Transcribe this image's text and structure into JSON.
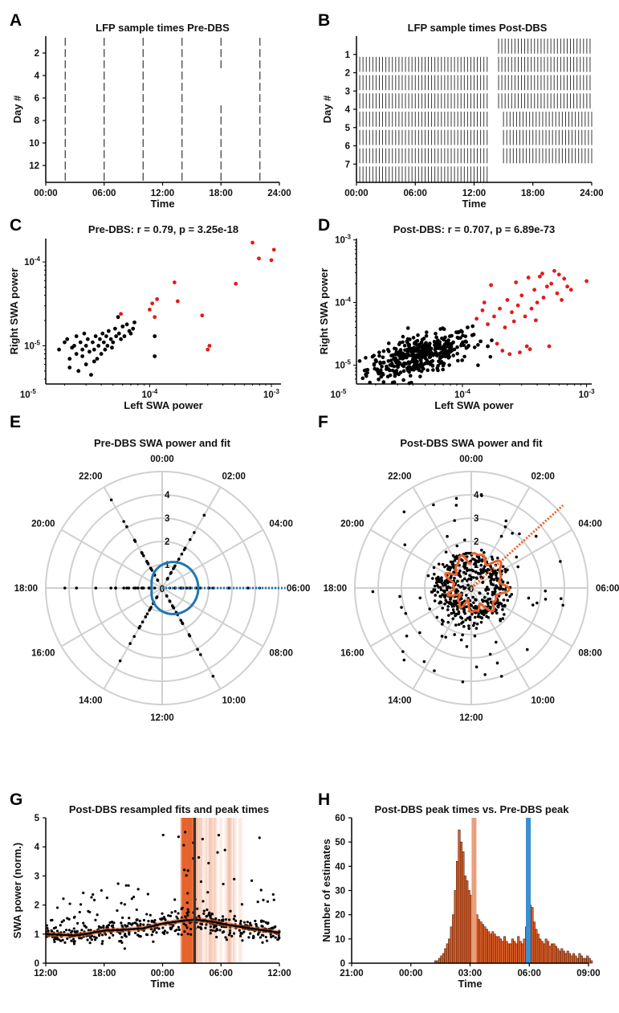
{
  "panel_letters": [
    "A",
    "B",
    "C",
    "D",
    "E",
    "F",
    "G",
    "H"
  ],
  "chart_data": [
    {
      "panel": "A",
      "type": "raster",
      "title": "LFP sample times Pre-DBS",
      "xlabel": "Time",
      "ylabel": "Day #",
      "xticks": [
        "00:00",
        "06:00",
        "12:00",
        "18:00",
        "24:00"
      ],
      "yticks": [
        "2",
        "4",
        "6",
        "8",
        "10",
        "12"
      ],
      "xlim": [
        0,
        24
      ],
      "ylim": [
        0,
        13
      ],
      "sample_hours": [
        2,
        6,
        10,
        14,
        18,
        22
      ],
      "days": 13,
      "gaps": [
        {
          "hour": 18,
          "from_day": 3,
          "to_day": 6
        }
      ]
    },
    {
      "panel": "B",
      "type": "raster",
      "title": "LFP sample times Post-DBS",
      "xlabel": "Time",
      "ylabel": "Day #",
      "xticks": [
        "00:00",
        "06:00",
        "12:00",
        "18:00",
        "24:00"
      ],
      "yticks": [
        "1",
        "2",
        "3",
        "4",
        "5",
        "6",
        "7"
      ],
      "xlim": [
        0,
        24
      ],
      "ylim": [
        0,
        7.6
      ],
      "interval_minutes": 20,
      "day_rows": [
        {
          "day": 0,
          "segments": [
            [
              0,
              0.2
            ],
            [
              14.5,
              24
            ]
          ]
        },
        {
          "day": 1,
          "segments": [
            [
              0,
              13.5
            ],
            [
              14.5,
              24
            ]
          ]
        },
        {
          "day": 2,
          "segments": [
            [
              0,
              13.5
            ],
            [
              14.5,
              24
            ]
          ]
        },
        {
          "day": 3,
          "segments": [
            [
              0,
              13.5
            ],
            [
              14.5,
              24
            ]
          ]
        },
        {
          "day": 4,
          "segments": [
            [
              0,
              13.5
            ],
            [
              15,
              24
            ]
          ]
        },
        {
          "day": 5,
          "segments": [
            [
              0,
              13.5
            ],
            [
              15,
              24
            ]
          ]
        },
        {
          "day": 6,
          "segments": [
            [
              0,
              13.5
            ],
            [
              15,
              24
            ]
          ]
        },
        {
          "day": 7,
          "segments": [
            [
              0,
              13.5
            ]
          ]
        }
      ]
    },
    {
      "panel": "C",
      "type": "scatter",
      "title": "Pre-DBS: r = 0.79, p = 3.25e-18",
      "xlabel": "Left SWA power",
      "ylabel": "Right SWA power",
      "xscale": "log",
      "yscale": "log",
      "xlim": [
        1.4e-05,
        0.0012
      ],
      "ylim": [
        3.5e-06,
        0.00019
      ],
      "xticks": [
        1e-05,
        0.0001,
        0.001
      ],
      "xtick_labels": [
        "10^-5",
        "10^-4",
        "10^-3"
      ],
      "yticks": [
        1e-05,
        0.0001
      ],
      "ytick_labels": [
        "10^-5",
        "10^-4"
      ],
      "series": [
        {
          "color": "#000000",
          "points": [
            [
              1.8e-05,
              9e-06
            ],
            [
              2e-05,
              1.1e-05
            ],
            [
              2.1e-05,
              1.2e-05
            ],
            [
              2.2e-05,
              7e-06
            ],
            [
              2.3e-05,
              9.5e-06
            ],
            [
              2.4e-05,
              1e-05
            ],
            [
              2.5e-05,
              8e-06
            ],
            [
              2.5e-05,
              1.3e-05
            ],
            [
              2.6e-05,
              5e-06
            ],
            [
              2.7e-05,
              1.1e-05
            ],
            [
              2.8e-05,
              7.5e-06
            ],
            [
              2.8e-05,
              9e-06
            ],
            [
              2.9e-05,
              1.4e-05
            ],
            [
              3e-05,
              6e-06
            ],
            [
              3e-05,
              1e-05
            ],
            [
              3.1e-05,
              1.2e-05
            ],
            [
              3.2e-05,
              8.5e-06
            ],
            [
              3.3e-05,
              4.5e-06
            ],
            [
              3.4e-05,
              1.1e-05
            ],
            [
              3.5e-05,
              9e-06
            ],
            [
              3.6e-05,
              1.3e-05
            ],
            [
              3.7e-05,
              7e-06
            ],
            [
              3.8e-05,
              1e-05
            ],
            [
              3.9e-05,
              1.2e-05
            ],
            [
              4e-05,
              8e-06
            ],
            [
              4.1e-05,
              1.4e-05
            ],
            [
              4.2e-05,
              1.1e-05
            ],
            [
              4.3e-05,
              9e-06
            ],
            [
              4.4e-05,
              1.3e-05
            ],
            [
              4.5e-05,
              1e-05
            ],
            [
              4.6e-05,
              1.5e-05
            ],
            [
              4.8e-05,
              1.2e-05
            ],
            [
              5e-05,
              1.1e-05
            ],
            [
              5.2e-05,
              1.6e-05
            ],
            [
              5.3e-05,
              1.3e-05
            ],
            [
              5.5e-05,
              2.2e-05
            ],
            [
              5.6e-05,
              1.4e-05
            ],
            [
              5.8e-05,
              1.2e-05
            ],
            [
              6e-05,
              1.7e-05
            ],
            [
              6.2e-05,
              1.3e-05
            ],
            [
              6.5e-05,
              1.8e-05
            ],
            [
              6.8e-05,
              1.5e-05
            ],
            [
              7e-05,
              1.4e-05
            ],
            [
              7.3e-05,
              1.6e-05
            ],
            [
              7.5e-05,
              1.9e-05
            ],
            [
              0.00011,
              1.3e-05
            ],
            [
              0.00011,
              7.5e-06
            ],
            [
              2.2e-05,
              5.5e-06
            ],
            [
              3.5e-05,
              6.5e-06
            ],
            [
              4.9e-05,
              9.5e-06
            ]
          ]
        },
        {
          "color": "#e41a1c",
          "points": [
            [
              5.8e-05,
              2.4e-05
            ],
            [
              0.0001,
              2.7e-05
            ],
            [
              0.000105,
              3.2e-05
            ],
            [
              0.00011,
              2.2e-05
            ],
            [
              0.000115,
              3.6e-05
            ],
            [
              0.00016,
              5.7e-05
            ],
            [
              0.00017,
              3.4e-05
            ],
            [
              0.00027,
              2.3e-05
            ],
            [
              0.0003,
              9e-06
            ],
            [
              0.00031,
              1e-05
            ],
            [
              0.00051,
              5.5e-05
            ],
            [
              0.0007,
              0.00017
            ],
            [
              0.00079,
              0.00011
            ],
            [
              0.001,
              0.000105
            ],
            [
              0.00105,
              0.00014
            ]
          ]
        }
      ]
    },
    {
      "panel": "D",
      "type": "scatter",
      "title": "Post-DBS: r = 0.707, p = 6.89e-73",
      "xlabel": "Left SWA power",
      "ylabel": "Right SWA power",
      "xscale": "log",
      "yscale": "log",
      "xlim": [
        1.4e-05,
        0.0011
      ],
      "ylim": [
        5e-06,
        0.00105
      ],
      "xticks": [
        1e-05,
        0.0001,
        0.001
      ],
      "xtick_labels": [
        "10^-5",
        "10^-4",
        "10^-3"
      ],
      "yticks": [
        1e-05,
        0.0001,
        0.001
      ],
      "ytick_labels": [
        "10^-5",
        "10^-4",
        "10^-3"
      ],
      "series": [
        {
          "color": "#000000",
          "cloud": {
            "count": 420,
            "center": [
              4.5e-05,
              1.4e-05
            ],
            "log10_spread": [
              0.21,
              0.15
            ],
            "slope": 0.5
          },
          "points": [
            [
              2e-05,
              1.2e-05
            ],
            [
              0.00012,
              3e-05
            ],
            [
              0.00014,
              2.4e-05
            ],
            [
              0.00016,
              2e-05
            ],
            [
              0.00011,
              4e-05
            ]
          ]
        },
        {
          "color": "#e41a1c",
          "points": [
            [
              0.00013,
              5.5e-05
            ],
            [
              0.00015,
              0.0001
            ],
            [
              0.00016,
              4.5e-05
            ],
            [
              0.00018,
              6e-05
            ],
            [
              0.0002,
              8e-05
            ],
            [
              0.00022,
              4e-05
            ],
            [
              0.00023,
              0.00011
            ],
            [
              0.00025,
              7e-05
            ],
            [
              0.00026,
              5e-05
            ],
            [
              0.00028,
              9e-05
            ],
            [
              0.0003,
              0.00013
            ],
            [
              0.00032,
              6e-05
            ],
            [
              0.00034,
              0.00025
            ],
            [
              0.00035,
              1.8e-05
            ],
            [
              0.00036,
              8e-05
            ],
            [
              0.00038,
              0.00016
            ],
            [
              0.0004,
              0.0001
            ],
            [
              0.00042,
              0.00026
            ],
            [
              0.00045,
              0.00012
            ],
            [
              0.00048,
              0.00018
            ],
            [
              0.0005,
              2e-05
            ],
            [
              0.00052,
              0.0002
            ],
            [
              0.00055,
              0.00032
            ],
            [
              0.00058,
              0.00014
            ],
            [
              0.0006,
              0.00028
            ],
            [
              0.00063,
              0.00011
            ],
            [
              0.00066,
              0.00024
            ],
            [
              0.0007,
              0.00018
            ],
            [
              0.00075,
              0.00016
            ],
            [
              0.001,
              0.00022
            ],
            [
              0.00021,
              1.7e-05
            ],
            [
              0.00024,
              1.5e-05
            ],
            [
              0.00019,
              2.2e-05
            ],
            [
              0.00029,
              1.6e-05
            ],
            [
              0.00033,
              2e-05
            ],
            [
              0.00017,
              0.00019
            ],
            [
              0.00027,
              0.00021
            ],
            [
              0.00044,
              0.00029
            ],
            [
              0.00039,
              5.2e-05
            ],
            [
              0.000145,
              7.5e-05
            ]
          ]
        }
      ]
    },
    {
      "panel": "E",
      "type": "polar",
      "title": "Pre-DBS SWA power and fit",
      "hour_labels": [
        "00:00",
        "02:00",
        "04:00",
        "06:00",
        "08:00",
        "10:00",
        "12:00",
        "14:00",
        "16:00",
        "18:00",
        "20:00",
        "22:00"
      ],
      "radial_labels": [
        "0",
        "1",
        "2",
        "3",
        "4"
      ],
      "rmax": 5,
      "fit_color": "#1f77b4",
      "fit_curve": {
        "base": 1.0,
        "amplitude": 0.55,
        "peak_hour": 6
      },
      "peak_hour": 6,
      "point_hours": [
        2,
        6,
        10,
        14,
        18,
        22
      ],
      "point_radii": [
        0.4,
        0.6,
        0.8,
        1.0,
        1.2,
        1.5,
        1.8,
        2.1,
        0.5,
        0.7,
        0.9,
        1.1,
        1.3,
        1.6,
        2.0,
        2.5,
        3.0,
        3.8,
        4.6
      ]
    },
    {
      "panel": "F",
      "type": "polar",
      "title": "Post-DBS SWA power and fit",
      "hour_labels": [
        "00:00",
        "02:00",
        "04:00",
        "06:00",
        "08:00",
        "10:00",
        "12:00",
        "14:00",
        "16:00",
        "18:00",
        "20:00",
        "22:00"
      ],
      "radial_labels": [
        "0",
        "1",
        "2",
        "3",
        "4"
      ],
      "rmax": 5,
      "fit_color": "#e8622a",
      "fit_curve": {
        "base": 1.1,
        "amplitude": 0.35,
        "peak_hour": 3.2,
        "wiggle": 0.18
      },
      "peak_hour": 3.2,
      "cloud": {
        "count": 520,
        "mean_radius": 1.1,
        "spread": 0.35,
        "outliers": 60
      }
    },
    {
      "panel": "G",
      "type": "line",
      "title": "Post-DBS resampled fits and peak times",
      "xlabel": "Time",
      "ylabel": "SWA power (norm.)",
      "xticks": [
        "12:00",
        "18:00",
        "00:00",
        "06:00",
        "12:00"
      ],
      "xtick_hours": [
        12,
        18,
        24,
        30,
        36
      ],
      "yticks": [
        "0",
        "1",
        "2",
        "3",
        "4",
        "5"
      ],
      "xlim": [
        12,
        36
      ],
      "ylim": [
        0,
        5
      ],
      "fit_color": "#e8622a",
      "peak_line_hour": 27.3,
      "peak_band": [
        26.0,
        28.2
      ],
      "fit_curve_points": [
        [
          12,
          1.0
        ],
        [
          14,
          0.97
        ],
        [
          15,
          0.95
        ],
        [
          16,
          1.0
        ],
        [
          18,
          1.12
        ],
        [
          20,
          1.15
        ],
        [
          22,
          1.2
        ],
        [
          24,
          1.36
        ],
        [
          26,
          1.46
        ],
        [
          27.3,
          1.5
        ],
        [
          29,
          1.43
        ],
        [
          31,
          1.3
        ],
        [
          33,
          1.2
        ],
        [
          35,
          1.1
        ],
        [
          36,
          1.05
        ]
      ],
      "scatter": {
        "count": 560,
        "noise": 0.25,
        "outliers": 80
      }
    },
    {
      "panel": "H",
      "type": "bar",
      "title": "Post-DBS peak times vs. Pre-DBS peak",
      "xlabel": "Time",
      "ylabel": "Number of estimates",
      "xticks": [
        "21:00",
        "00:00",
        "03:00",
        "06:00",
        "09:00"
      ],
      "xtick_hours": [
        21,
        24,
        27,
        30,
        33
      ],
      "yticks": [
        "0",
        "10",
        "20",
        "30",
        "40",
        "50",
        "60"
      ],
      "xlim": [
        21,
        33
      ],
      "ylim": [
        0,
        60
      ],
      "bar_color": "#e8622a",
      "vlines": [
        {
          "hour": 27.2,
          "color": "#e8a07a"
        },
        {
          "hour": 29.95,
          "color": "#3a8fd1"
        }
      ],
      "bin_width_hours": 0.1,
      "bins_start_hour": 25.2,
      "values": [
        1,
        1,
        2,
        3,
        4,
        6,
        8,
        10,
        15,
        20,
        30,
        42,
        55,
        50,
        46,
        36,
        34,
        30,
        28,
        25,
        23,
        20,
        18,
        17,
        16,
        15,
        14,
        13,
        12,
        13,
        12,
        11,
        11,
        10,
        9,
        11,
        9,
        8,
        8,
        10,
        9,
        8,
        11,
        9,
        8,
        10,
        15,
        21,
        24,
        23,
        17,
        14,
        12,
        10,
        9,
        8,
        10,
        9,
        7,
        8,
        8,
        7,
        6,
        5,
        6,
        5,
        4,
        5,
        4,
        3,
        4,
        3,
        2,
        4,
        3,
        2,
        2,
        3,
        2,
        1
      ]
    }
  ]
}
